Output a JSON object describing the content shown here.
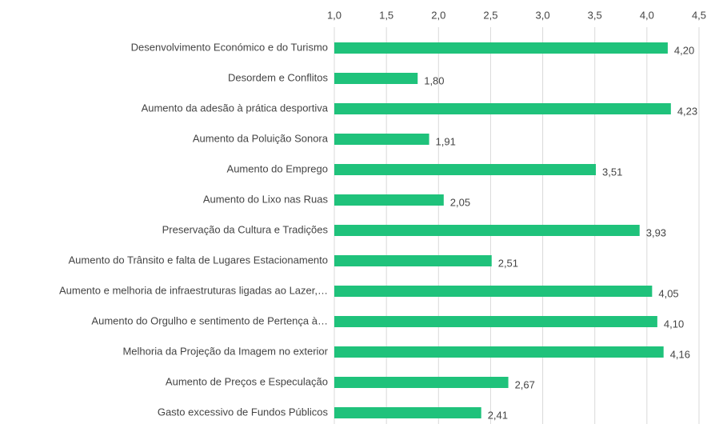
{
  "chart_data": {
    "type": "bar",
    "orientation": "horizontal",
    "categories": [
      "Desenvolvimento Económico e do Turismo",
      "Desordem e Conflitos",
      "Aumento da adesão à prática desportiva",
      "Aumento da Poluição Sonora",
      "Aumento do Emprego",
      "Aumento do Lixo nas Ruas",
      "Preservação da Cultura e Tradições",
      "Aumento do Trânsito e falta de Lugares Estacionamento",
      "Aumento e melhoria de infraestruturas ligadas ao Lazer,…",
      "Aumento do Orgulho e sentimento de Pertença à…",
      "Melhoria da Projeção da Imagem no exterior",
      "Aumento de Preços e Especulação",
      "Gasto excessivo de Fundos Públicos"
    ],
    "values": [
      4.2,
      1.8,
      4.23,
      1.91,
      3.51,
      2.05,
      3.93,
      2.51,
      4.05,
      4.1,
      4.16,
      2.67,
      2.41
    ],
    "value_labels": [
      "4,20",
      "1,80",
      "4,23",
      "1,91",
      "3,51",
      "2,05",
      "3,93",
      "2,51",
      "4,05",
      "4,10",
      "4,16",
      "2,67",
      "2,41"
    ],
    "color": "#1fc27b",
    "xlim": [
      1.0,
      4.5
    ],
    "xticks": [
      {
        "value": 1.0,
        "label": "1,0"
      },
      {
        "value": 1.5,
        "label": "1,5"
      },
      {
        "value": 2.0,
        "label": "2,0"
      },
      {
        "value": 2.5,
        "label": "2,5"
      },
      {
        "value": 3.0,
        "label": "3,0"
      },
      {
        "value": 3.5,
        "label": "3,5"
      },
      {
        "value": 4.0,
        "label": "4,0"
      },
      {
        "value": 4.5,
        "label": "4,5"
      }
    ],
    "grid": true
  }
}
